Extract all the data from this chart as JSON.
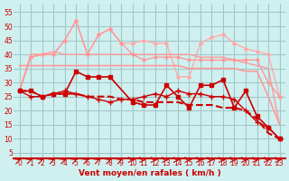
{
  "bg_color": "#d0f0f0",
  "grid_color": "#a0c8c8",
  "xlabel": "Vent moyen/en rafales ( km/h )",
  "ylabel_ticks": [
    5,
    10,
    15,
    20,
    25,
    30,
    35,
    40,
    45,
    50,
    55
  ],
  "x_values": [
    0,
    1,
    2,
    3,
    4,
    5,
    6,
    7,
    8,
    9,
    10,
    11,
    12,
    13,
    14,
    15,
    16,
    17,
    18,
    19,
    20,
    21,
    22,
    23
  ],
  "series": [
    {
      "y": [
        27,
        27,
        25,
        26,
        26,
        34,
        32,
        32,
        32,
        null,
        23,
        22,
        22,
        29,
        25,
        21,
        29,
        29,
        31,
        21,
        27,
        18,
        14,
        10
      ],
      "color": "#cc0000",
      "lw": 1.2,
      "marker": "s",
      "ms": 3,
      "zorder": 5,
      "dashed": false
    },
    {
      "y": [
        27,
        27,
        25,
        26,
        26,
        26,
        25,
        25,
        25,
        24,
        24,
        23,
        23,
        23,
        23,
        22,
        22,
        22,
        21,
        21,
        20,
        17,
        12,
        10
      ],
      "color": "#cc0000",
      "lw": 1.5,
      "marker": null,
      "ms": 0,
      "zorder": 4,
      "dashed": true
    },
    {
      "y": [
        27,
        25,
        25,
        26,
        27,
        26,
        25,
        24,
        23,
        24,
        24,
        25,
        26,
        25,
        27,
        26,
        26,
        25,
        25,
        24,
        20,
        16,
        14,
        10
      ],
      "color": "#cc0000",
      "lw": 1.0,
      "marker": "+",
      "ms": 4,
      "zorder": 4,
      "dashed": false
    },
    {
      "y": [
        36,
        36,
        36,
        36,
        36,
        36,
        36,
        36,
        36,
        36,
        36,
        36,
        36,
        36,
        36,
        35,
        35,
        35,
        35,
        35,
        34,
        34,
        25,
        15
      ],
      "color": "#ff9999",
      "lw": 1.2,
      "marker": null,
      "ms": 0,
      "zorder": 3,
      "dashed": false
    },
    {
      "y": [
        27,
        39,
        40,
        40,
        45,
        52,
        40,
        47,
        49,
        44,
        40,
        38,
        39,
        39,
        39,
        38,
        38,
        38,
        38,
        38,
        38,
        38,
        30,
        25
      ],
      "color": "#ff9999",
      "lw": 1.0,
      "marker": "o",
      "ms": 2,
      "zorder": 3,
      "dashed": false
    },
    {
      "y": [
        27,
        39,
        40,
        40,
        45,
        52,
        40,
        47,
        49,
        44,
        44,
        45,
        44,
        44,
        32,
        32,
        44,
        46,
        47,
        44,
        42,
        41,
        40,
        25
      ],
      "color": "#ffaaaa",
      "lw": 1.0,
      "marker": "D",
      "ms": 2,
      "zorder": 2,
      "dashed": false
    },
    {
      "y": [
        27,
        40,
        40,
        41,
        40,
        40,
        40,
        40,
        40,
        40,
        40,
        40,
        40,
        40,
        40,
        40,
        39,
        39,
        39,
        38,
        37,
        36,
        35,
        15
      ],
      "color": "#ff9999",
      "lw": 1.0,
      "marker": null,
      "ms": 0,
      "zorder": 2,
      "dashed": false
    }
  ],
  "arrow_angles": [
    45,
    45,
    45,
    45,
    45,
    45,
    45,
    45,
    45,
    45,
    0,
    0,
    0,
    0,
    0,
    0,
    0,
    0,
    0,
    0,
    0,
    0,
    0,
    0
  ],
  "arrow_color": "#cc0000"
}
